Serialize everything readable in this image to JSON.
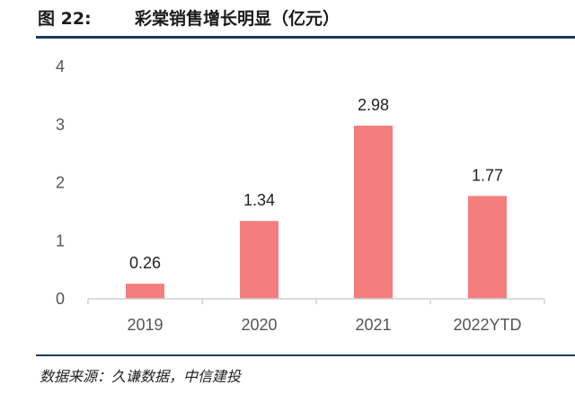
{
  "header": {
    "figure_label": "图 22:",
    "title": "彩棠销售增长明显（亿元）"
  },
  "footer": {
    "source": "数据来源：久谦数据，中信建投"
  },
  "chart_data": {
    "type": "bar",
    "title": "彩棠销售增长明显（亿元）",
    "categories": [
      "2019",
      "2020",
      "2021",
      "2022YTD"
    ],
    "series": [
      {
        "values": [
          0.26,
          1.34,
          2.98,
          1.77
        ]
      }
    ],
    "data_labels": [
      "0.26",
      "1.34",
      "2.98",
      "1.77"
    ],
    "ylim": [
      0,
      4
    ],
    "yticks": [
      "0",
      "1",
      "2",
      "3",
      "4"
    ],
    "bar_color": "#f47d7e",
    "grid": false,
    "legend": "none"
  }
}
